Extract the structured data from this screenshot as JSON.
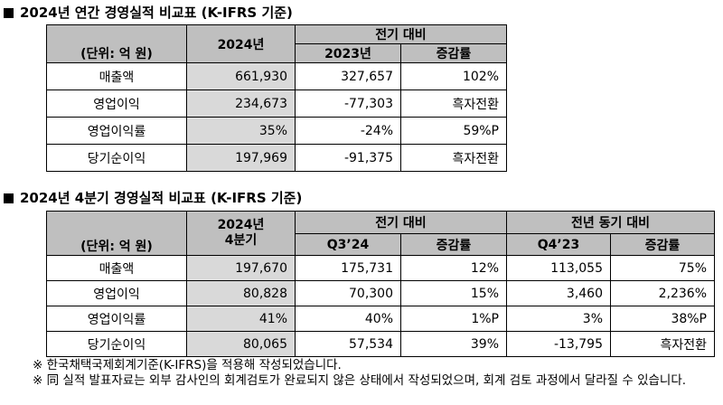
{
  "annual": {
    "title": "2024년 연간 경영실적 비교표 (K-IFRS 기준)",
    "unit_label": "(단위: 억 원)",
    "current_header": "2024년",
    "compare_header": "전기 대비",
    "prev_header": "2023년",
    "change_header": "증감률",
    "rows": [
      {
        "label": "매출액",
        "current": "661,930",
        "prev": "327,657",
        "change": "102%"
      },
      {
        "label": "영업이익",
        "current": "234,673",
        "prev": "-77,303",
        "change": "흑자전환"
      },
      {
        "label": "영업이익률",
        "current": "35%",
        "prev": "-24%",
        "change": "59%P"
      },
      {
        "label": "당기순이익",
        "current": "197,969",
        "prev": "-91,375",
        "change": "흑자전환"
      }
    ]
  },
  "quarterly": {
    "title": "2024년 4분기 경영실적 비교표 (K-IFRS 기준)",
    "unit_label": "(단위: 억 원)",
    "current_header_line1": "2024년",
    "current_header_line2": "4분기",
    "qoq_header": "전기 대비",
    "qoq_period": "Q3’24",
    "qoq_change": "증감률",
    "yoy_header": "전년 동기 대비",
    "yoy_period": "Q4’23",
    "yoy_change": "증감률",
    "rows": [
      {
        "label": "매출액",
        "current": "197,670",
        "q3": "175,731",
        "q3_change": "12%",
        "q4_prev": "113,055",
        "yoy_change": "75%"
      },
      {
        "label": "영업이익",
        "current": "80,828",
        "q3": "70,300",
        "q3_change": "15%",
        "q4_prev": "3,460",
        "yoy_change": "2,236%"
      },
      {
        "label": "영업이익률",
        "current": "41%",
        "q3": "40%",
        "q3_change": "1%P",
        "q4_prev": "3%",
        "yoy_change": "38%P"
      },
      {
        "label": "당기순이익",
        "current": "80,065",
        "q3": "57,534",
        "q3_change": "39%",
        "q4_prev": "-13,795",
        "yoy_change": "흑자전환"
      }
    ]
  },
  "notes": [
    "※ 한국채택국제회계기준(K-IFRS)을 적용해 작성되었습니다.",
    "※ 同 실적 발표자료는 외부 감사인의 회계검토가 완료되지 않은 상태에서 작성되었으며, 회계 검토 과정에서 달라질 수 있습니다."
  ]
}
